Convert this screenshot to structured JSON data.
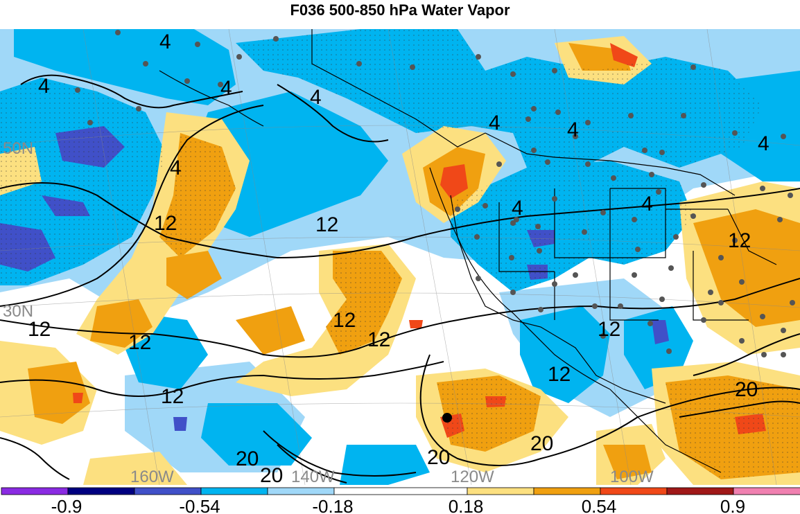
{
  "title": "F036 500-850 hPa Water Vapor",
  "map": {
    "lat_labels": [
      "50N",
      "30N"
    ],
    "lon_labels": [
      "160W",
      "140W",
      "120W",
      "100W"
    ],
    "contour_labels": [
      "4",
      "4",
      "4",
      "4",
      "4",
      "4",
      "4",
      "4",
      "4",
      "4",
      "12",
      "12",
      "12",
      "12",
      "12",
      "12",
      "12",
      "12",
      "12",
      "12",
      "20",
      "20",
      "20",
      "20"
    ],
    "colors": {
      "ocean_blue": "#00b4f0",
      "light_blue": "#a0d8f8",
      "dark_blue": "#4050c8",
      "light_orange": "#fce080",
      "orange": "#f0a010",
      "red": "#f04818"
    }
  },
  "colorbar": {
    "tick_labels": [
      "-0.9",
      "-0.54",
      "-0.18",
      "0.18",
      "0.54",
      "0.9"
    ],
    "colors": [
      "#8a2be2",
      "#000080",
      "#4050c8",
      "#00b4f0",
      "#a0d8f8",
      "#ffffff",
      "#fce080",
      "#f0a010",
      "#f04818",
      "#a01818",
      "#f080b0"
    ]
  }
}
